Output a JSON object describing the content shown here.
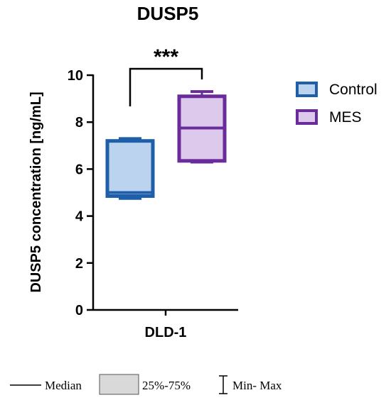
{
  "chart_data": {
    "type": "box",
    "title": "DUSP5",
    "ylabel": "DUSP5 concentration [ng/mL]",
    "xlabel": "DLD-1",
    "ylim": [
      0,
      10
    ],
    "yticks": [
      0,
      2,
      4,
      6,
      8,
      10
    ],
    "grid": false,
    "legend_position": "right",
    "series": [
      {
        "name": "Control",
        "min": 4.75,
        "q1": 4.85,
        "median": 5.0,
        "q3": 7.2,
        "max": 7.3,
        "fill": "#bcd3f0",
        "stroke": "#1f5ea8"
      },
      {
        "name": "MES",
        "min": 6.3,
        "q1": 6.35,
        "median": 7.75,
        "q3": 9.1,
        "max": 9.3,
        "fill": "#dcc9ec",
        "stroke": "#6a2c9a"
      }
    ],
    "significance": {
      "label": "***",
      "between": [
        "Control",
        "MES"
      ]
    }
  },
  "key": {
    "median_label": "Median",
    "iqr_label": "25%-75%",
    "range_label": "Min- Max",
    "iqr_fill": "#d9d9d9"
  }
}
